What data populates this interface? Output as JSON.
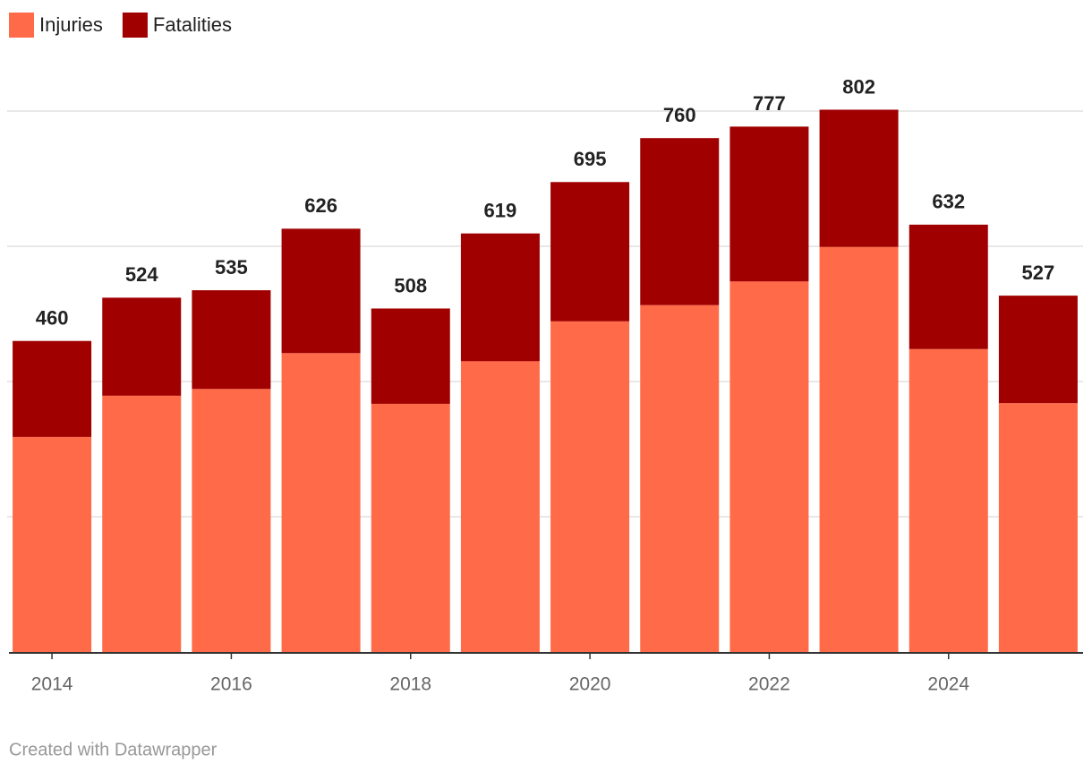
{
  "chart_data": {
    "type": "stacked_bar",
    "categories": [
      "2014",
      null,
      "2016",
      null,
      "2018",
      null,
      "2020",
      null,
      "2022",
      null,
      "2024",
      null
    ],
    "series": [
      {
        "name": "Injuries",
        "color": "#ff6a48",
        "values": [
          318,
          379,
          389,
          442,
          367,
          430,
          489,
          513,
          548,
          599,
          448,
          368
        ]
      },
      {
        "name": "Fatalities",
        "color": "#a00000",
        "values": [
          142,
          145,
          146,
          184,
          141,
          189,
          206,
          247,
          229,
          203,
          184,
          159
        ]
      }
    ],
    "totals": [
      460,
      524,
      535,
      626,
      508,
      619,
      695,
      760,
      777,
      802,
      632,
      527
    ],
    "ylim": [
      0,
      800
    ],
    "yticks": [
      0,
      200,
      400,
      600,
      800
    ],
    "grid": true,
    "legend": "top-left",
    "credit": "Created with Datawrapper"
  }
}
